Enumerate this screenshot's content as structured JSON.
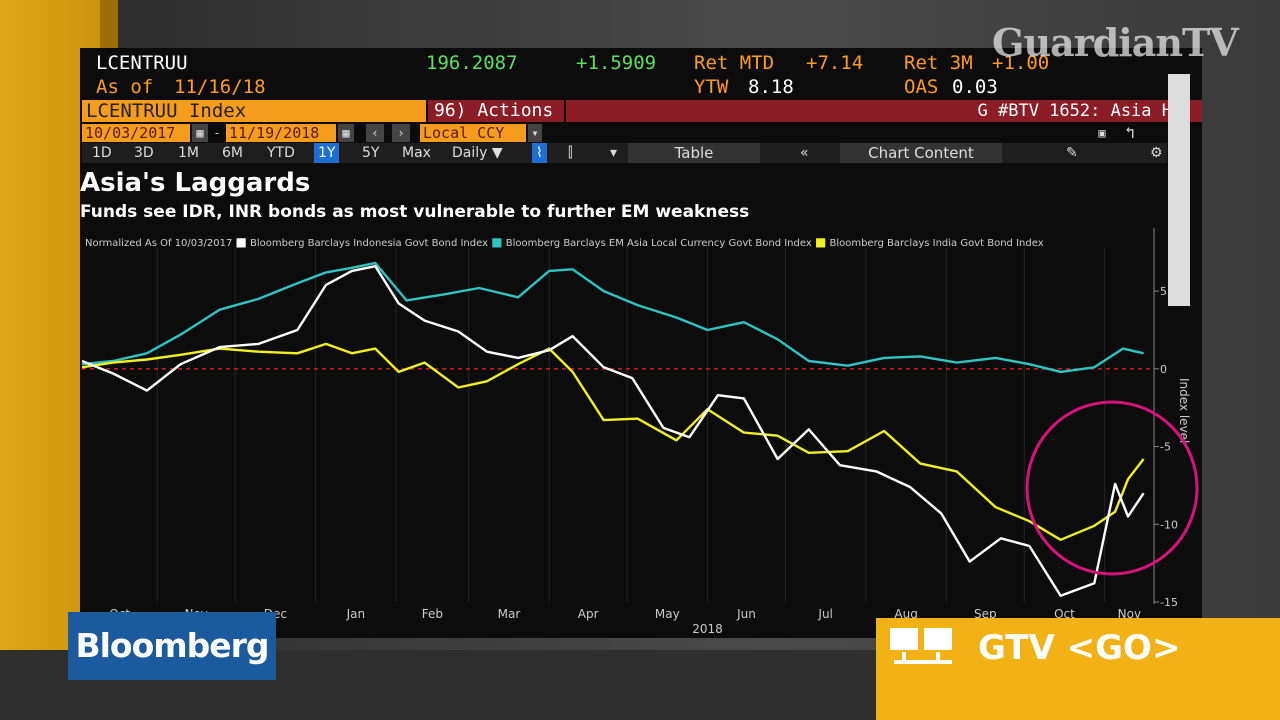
{
  "watermark": "GuardianTV",
  "terminal": {
    "ticker": "LCENTRUU",
    "as_of_label": "As of",
    "as_of_date": "11/16/18",
    "price": "196.2087",
    "change": "+1.5909",
    "ret_mtd_label": "Ret MTD",
    "ret_mtd": "+7.14",
    "ret_3m_label": "Ret 3M",
    "ret_3m": "+1.00",
    "ytw_label": "YTW",
    "ytw": "8.18",
    "oas_label": "OAS",
    "oas": "0.03",
    "security": "LCENTRUU Index",
    "actions": "96) Actions",
    "function_title": "G #BTV 1652: Asia H",
    "date_from": "10/03/2017",
    "date_to": "11/19/2018",
    "currency": "Local CCY",
    "toolbar": {
      "ranges": [
        "1D",
        "3D",
        "1M",
        "6M",
        "YTD",
        "1Y",
        "5Y",
        "Max"
      ],
      "active_range": "1Y",
      "frequency": "Daily",
      "table": "Table",
      "chart_content": "Chart Content"
    }
  },
  "chart_data": {
    "type": "line",
    "title": "Asia's Laggards",
    "subtitle": "Funds see IDR, INR bonds as most vulnerable to further EM weakness",
    "normalized_label": "Normalized As Of 10/03/2017",
    "ylabel": "Index level",
    "ylim": [
      -15,
      7
    ],
    "yticks": [
      5,
      0,
      -5,
      -10,
      -15
    ],
    "x_months": [
      "Oct",
      "Nov",
      "Dec",
      "Jan",
      "Feb",
      "Mar",
      "Apr",
      "May",
      "Jun",
      "Jul",
      "Aug",
      "Sep",
      "Oct",
      "Nov"
    ],
    "x_year": "2018",
    "zero_line_color": "#d02020",
    "annotation": "circle around Oct-Nov 2018 rebound",
    "series": [
      {
        "name": "Bloomberg Barclays Indonesia Govt Bond Index",
        "color": "#ffffff",
        "x": [
          "2017-10-03",
          "2017-10-15",
          "2017-10-28",
          "2017-11-10",
          "2017-11-25",
          "2017-12-10",
          "2017-12-25",
          "2018-01-05",
          "2018-01-15",
          "2018-01-24",
          "2018-02-02",
          "2018-02-12",
          "2018-02-25",
          "2018-03-08",
          "2018-03-20",
          "2018-04-01",
          "2018-04-10",
          "2018-04-22",
          "2018-05-03",
          "2018-05-15",
          "2018-05-25",
          "2018-06-05",
          "2018-06-15",
          "2018-06-28",
          "2018-07-10",
          "2018-07-22",
          "2018-08-05",
          "2018-08-18",
          "2018-08-30",
          "2018-09-10",
          "2018-09-22",
          "2018-10-03",
          "2018-10-15",
          "2018-10-28",
          "2018-11-05",
          "2018-11-10",
          "2018-11-16"
        ],
        "values": [
          0.5,
          -0.3,
          -1.4,
          0.3,
          1.4,
          1.6,
          2.5,
          5.4,
          6.3,
          6.6,
          4.2,
          3.1,
          2.4,
          1.1,
          0.7,
          1.2,
          2.1,
          0.1,
          -0.6,
          -3.8,
          -4.4,
          -1.7,
          -1.9,
          -5.8,
          -3.9,
          -6.2,
          -6.6,
          -7.6,
          -9.3,
          -12.4,
          -10.9,
          -11.4,
          -14.6,
          -13.8,
          -7.4,
          -9.5,
          -8.0
        ]
      },
      {
        "name": "Bloomberg Barclays EM Asia Local Currency Govt Bond Index",
        "color": "#2ec4c4",
        "x": [
          "2017-10-03",
          "2017-10-15",
          "2017-10-28",
          "2017-11-10",
          "2017-11-25",
          "2017-12-10",
          "2017-12-25",
          "2018-01-05",
          "2018-01-15",
          "2018-01-24",
          "2018-02-05",
          "2018-02-20",
          "2018-03-05",
          "2018-03-20",
          "2018-04-01",
          "2018-04-10",
          "2018-04-22",
          "2018-05-05",
          "2018-05-20",
          "2018-06-01",
          "2018-06-15",
          "2018-06-28",
          "2018-07-10",
          "2018-07-25",
          "2018-08-08",
          "2018-08-22",
          "2018-09-05",
          "2018-09-20",
          "2018-10-03",
          "2018-10-15",
          "2018-10-28",
          "2018-11-08",
          "2018-11-16"
        ],
        "values": [
          0.3,
          0.5,
          1.0,
          2.2,
          3.8,
          4.5,
          5.5,
          6.2,
          6.5,
          6.8,
          4.4,
          4.8,
          5.2,
          4.6,
          6.3,
          6.4,
          5.0,
          4.1,
          3.3,
          2.5,
          3.0,
          1.9,
          0.5,
          0.2,
          0.7,
          0.8,
          0.4,
          0.7,
          0.3,
          -0.2,
          0.1,
          1.3,
          1.0
        ]
      },
      {
        "name": "Bloomberg Barclays India Govt Bond Index",
        "color": "#f0f020",
        "x": [
          "2017-10-03",
          "2017-10-15",
          "2017-10-28",
          "2017-11-10",
          "2017-11-25",
          "2017-12-10",
          "2017-12-25",
          "2018-01-05",
          "2018-01-15",
          "2018-01-24",
          "2018-02-02",
          "2018-02-12",
          "2018-02-25",
          "2018-03-08",
          "2018-03-20",
          "2018-04-01",
          "2018-04-10",
          "2018-04-22",
          "2018-05-05",
          "2018-05-20",
          "2018-06-01",
          "2018-06-15",
          "2018-06-28",
          "2018-07-10",
          "2018-07-25",
          "2018-08-08",
          "2018-08-22",
          "2018-09-05",
          "2018-09-20",
          "2018-10-03",
          "2018-10-15",
          "2018-10-28",
          "2018-11-05",
          "2018-11-10",
          "2018-11-16"
        ],
        "values": [
          0.1,
          0.4,
          0.6,
          0.9,
          1.3,
          1.1,
          1.0,
          1.6,
          1.0,
          1.3,
          -0.2,
          0.4,
          -1.2,
          -0.8,
          0.3,
          1.3,
          -0.2,
          -3.3,
          -3.2,
          -4.6,
          -2.6,
          -4.1,
          -4.3,
          -5.4,
          -5.3,
          -4.0,
          -6.1,
          -6.6,
          -8.9,
          -9.8,
          -11.0,
          -10.1,
          -9.2,
          -7.1,
          -5.8
        ]
      }
    ]
  },
  "bloomberg_logo": "Bloomberg",
  "gtv_cta": "GTV <GO>"
}
